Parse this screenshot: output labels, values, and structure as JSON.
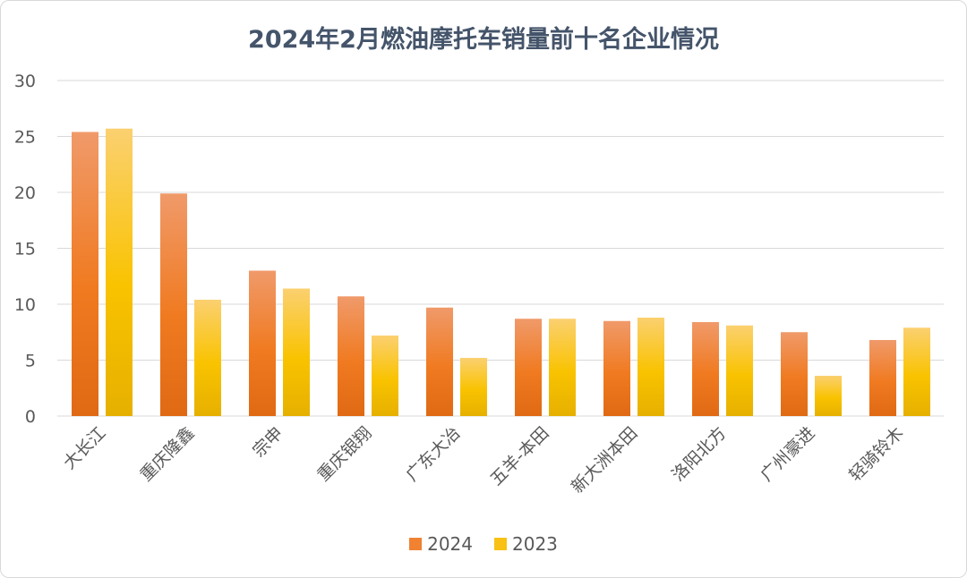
{
  "chart_data": {
    "type": "bar",
    "title": "2024年2月燃油摩托车销量前十名企业情况",
    "categories": [
      "大长江",
      "重庆隆鑫",
      "宗申",
      "重庆银翔",
      "广东大冶",
      "五羊-本田",
      "新大洲本田",
      "洛阳北方",
      "广州豪进",
      "轻骑铃木"
    ],
    "series": [
      {
        "name": "2024",
        "color": "#f08232",
        "values": [
          25.4,
          19.9,
          13.0,
          10.7,
          9.7,
          8.7,
          8.5,
          8.4,
          7.5,
          6.8
        ]
      },
      {
        "name": "2023",
        "color": "#f9c114",
        "values": [
          25.7,
          10.4,
          11.4,
          7.2,
          5.2,
          8.7,
          8.8,
          8.1,
          3.6,
          7.9
        ]
      }
    ],
    "ylim": [
      0,
      30
    ],
    "yticks": [
      0,
      5,
      10,
      15,
      20,
      25,
      30
    ],
    "grid": true,
    "legend_position": "bottom"
  }
}
